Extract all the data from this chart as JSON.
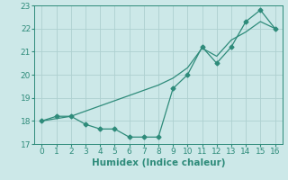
{
  "line1_x": [
    0,
    1,
    2,
    3,
    4,
    5,
    6,
    7,
    8,
    9,
    10,
    11,
    12,
    13,
    14,
    15,
    16
  ],
  "line1_y": [
    18.0,
    18.2,
    18.2,
    17.85,
    17.65,
    17.65,
    17.3,
    17.3,
    17.3,
    19.4,
    20.0,
    21.2,
    20.5,
    21.2,
    22.3,
    22.8,
    22.0
  ],
  "line2_x": [
    0,
    2,
    8,
    9,
    10,
    11,
    12,
    13,
    14,
    15,
    16
  ],
  "line2_y": [
    18.0,
    18.2,
    19.55,
    19.85,
    20.3,
    21.15,
    20.8,
    21.5,
    21.85,
    22.3,
    22.0
  ],
  "line_color": "#2e8b7a",
  "marker": "D",
  "marker_size": 2.5,
  "xlabel": "Humidex (Indice chaleur)",
  "xlim": [
    -0.5,
    16.5
  ],
  "ylim": [
    17.0,
    23.0
  ],
  "xticks": [
    0,
    1,
    2,
    3,
    4,
    5,
    6,
    7,
    8,
    9,
    10,
    11,
    12,
    13,
    14,
    15,
    16
  ],
  "yticks": [
    17,
    18,
    19,
    20,
    21,
    22,
    23
  ],
  "bg_color": "#cce8e8",
  "grid_color": "#aed0d0",
  "tick_fontsize": 6.5,
  "label_fontsize": 7.5
}
